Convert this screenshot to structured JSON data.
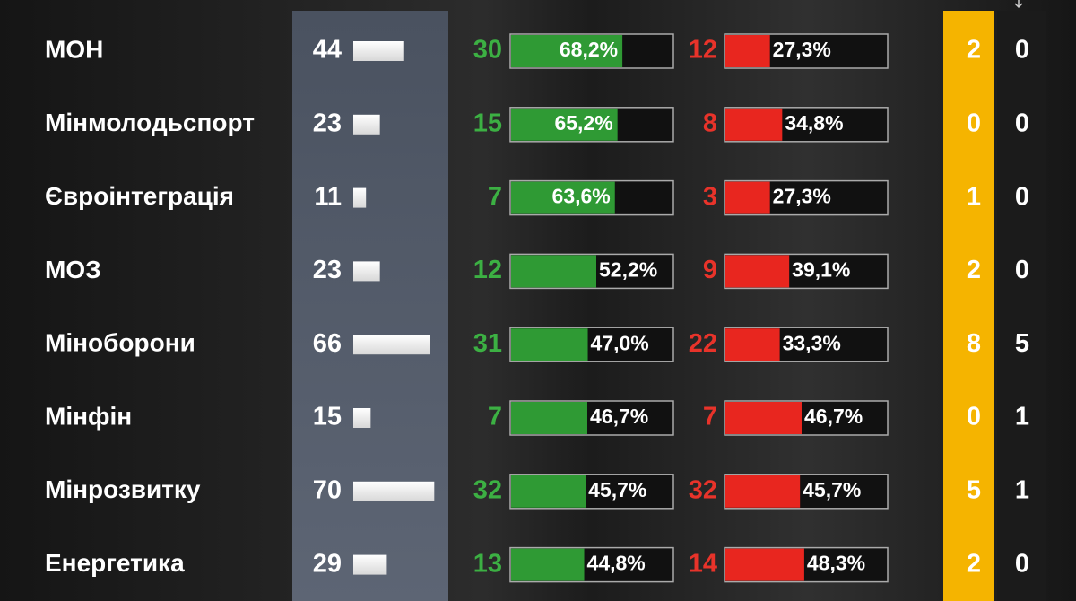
{
  "table": {
    "rows": [
      {
        "name": "МОН",
        "total": 44,
        "yes": 30,
        "yes_pct": {
          "value": 68.2,
          "label": "68,2%"
        },
        "no": 12,
        "no_pct": {
          "value": 27.3,
          "label": "27,3%"
        },
        "extra1": 2,
        "extra2": 0
      },
      {
        "name": "Мінмолодьспорт",
        "total": 23,
        "yes": 15,
        "yes_pct": {
          "value": 65.2,
          "label": "65,2%"
        },
        "no": 8,
        "no_pct": {
          "value": 34.8,
          "label": "34,8%"
        },
        "extra1": 0,
        "extra2": 0
      },
      {
        "name": "Євроінтеграція",
        "total": 11,
        "yes": 7,
        "yes_pct": {
          "value": 63.6,
          "label": "63,6%"
        },
        "no": 3,
        "no_pct": {
          "value": 27.3,
          "label": "27,3%"
        },
        "extra1": 1,
        "extra2": 0
      },
      {
        "name": "МОЗ",
        "total": 23,
        "yes": 12,
        "yes_pct": {
          "value": 52.2,
          "label": "52,2%"
        },
        "no": 9,
        "no_pct": {
          "value": 39.1,
          "label": "39,1%"
        },
        "extra1": 2,
        "extra2": 0
      },
      {
        "name": "Міноборони",
        "total": 66,
        "yes": 31,
        "yes_pct": {
          "value": 47.0,
          "label": "47,0%"
        },
        "no": 22,
        "no_pct": {
          "value": 33.3,
          "label": "33,3%"
        },
        "extra1": 8,
        "extra2": 5
      },
      {
        "name": "Мінфін",
        "total": 15,
        "yes": 7,
        "yes_pct": {
          "value": 46.7,
          "label": "46,7%"
        },
        "no": 7,
        "no_pct": {
          "value": 46.7,
          "label": "46,7%"
        },
        "extra1": 0,
        "extra2": 1
      },
      {
        "name": "Мінрозвитку",
        "total": 70,
        "yes": 32,
        "yes_pct": {
          "value": 45.7,
          "label": "45,7%"
        },
        "no": 32,
        "no_pct": {
          "value": 45.7,
          "label": "45,7%"
        },
        "extra1": 5,
        "extra2": 1
      },
      {
        "name": "Енергетика",
        "total": 29,
        "yes": 13,
        "yes_pct": {
          "value": 44.8,
          "label": "44,8%"
        },
        "no": 14,
        "no_pct": {
          "value": 48.3,
          "label": "48,3%"
        },
        "extra1": 2,
        "extra2": 0
      }
    ]
  }
}
